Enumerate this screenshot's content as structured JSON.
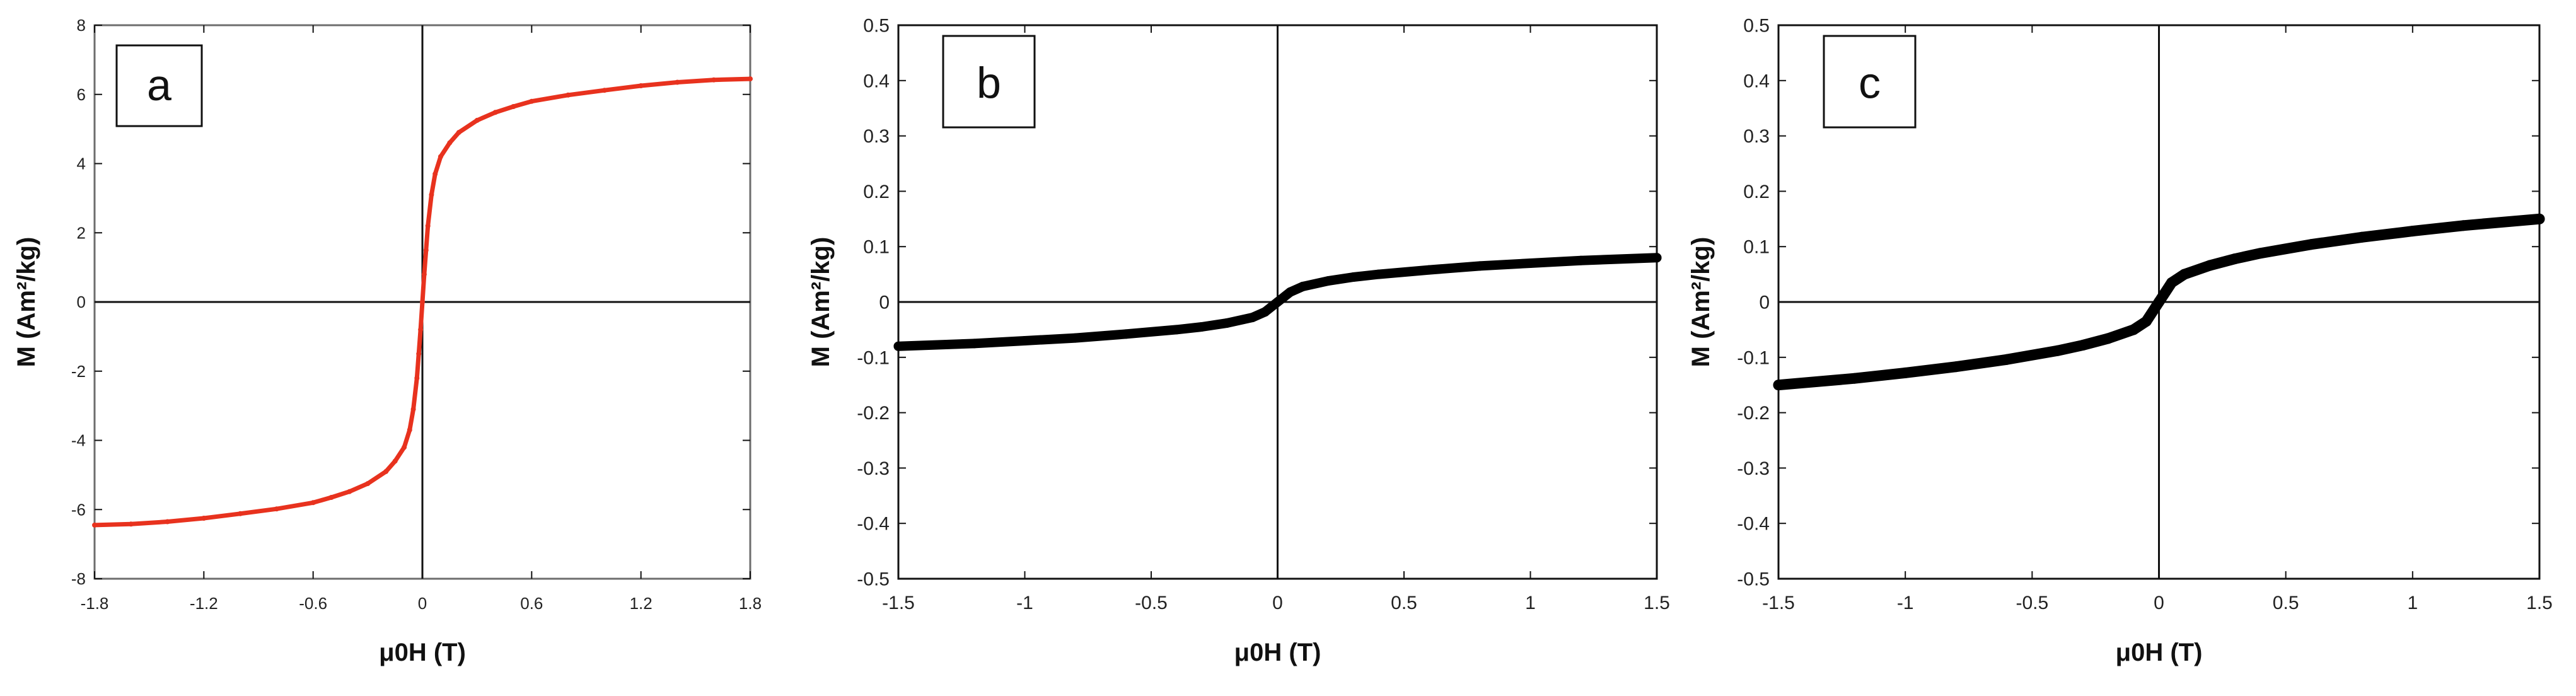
{
  "chart_data": [
    {
      "panel": "a",
      "type": "line",
      "xlabel": "μ0H (T)",
      "ylabel": "M (Am²/kg)",
      "xlim": [
        -1.8,
        1.8
      ],
      "ylim": [
        -8,
        8
      ],
      "xticks": [
        -1.8,
        -1.2,
        -0.6,
        0,
        0.6,
        1.2,
        1.8
      ],
      "xtick_labels": [
        "-1.8",
        "-1.2",
        "-0.6",
        "0",
        "0.6",
        "1.2",
        "1.8"
      ],
      "yticks": [
        -8,
        -6,
        -4,
        -2,
        0,
        2,
        4,
        6,
        8
      ],
      "ytick_labels": [
        "-8",
        "-6",
        "-4",
        "-2",
        "0",
        "2",
        "4",
        "6",
        "8"
      ],
      "grid": false,
      "color": "#e8321e",
      "series": [
        {
          "x": [
            -1.8,
            -1.6,
            -1.4,
            -1.2,
            -1.0,
            -0.8,
            -0.6,
            -0.5,
            -0.4,
            -0.3,
            -0.2,
            -0.15,
            -0.1,
            -0.07,
            -0.05,
            -0.03,
            -0.02,
            -0.01,
            0,
            0.01,
            0.02,
            0.03,
            0.05,
            0.07,
            0.1,
            0.15,
            0.2,
            0.3,
            0.4,
            0.5,
            0.6,
            0.8,
            1.0,
            1.2,
            1.4,
            1.6,
            1.8
          ],
          "y": [
            -6.45,
            -6.42,
            -6.35,
            -6.25,
            -6.12,
            -5.98,
            -5.8,
            -5.65,
            -5.48,
            -5.25,
            -4.9,
            -4.6,
            -4.2,
            -3.7,
            -3.1,
            -2.2,
            -1.5,
            -0.8,
            0,
            0.8,
            1.5,
            2.2,
            3.1,
            3.7,
            4.2,
            4.6,
            4.9,
            5.25,
            5.48,
            5.65,
            5.8,
            5.98,
            6.12,
            6.25,
            6.35,
            6.42,
            6.45
          ]
        }
      ]
    },
    {
      "panel": "b",
      "type": "line",
      "xlabel": "μ0H (T)",
      "ylabel": "M (Am²/kg)",
      "xlim": [
        -1.5,
        1.5
      ],
      "ylim": [
        -0.5,
        0.5
      ],
      "xticks": [
        -1.5,
        -1,
        -0.5,
        0,
        0.5,
        1,
        1.5
      ],
      "xtick_labels": [
        "-1.5",
        "-1",
        "-0.5",
        "0",
        "0.5",
        "1",
        "1.5"
      ],
      "yticks": [
        -0.5,
        -0.4,
        -0.3,
        -0.2,
        -0.1,
        0,
        0.1,
        0.2,
        0.3,
        0.4,
        0.5
      ],
      "ytick_labels": [
        "-0.5",
        "-0.4",
        "-0.3",
        "-0.2",
        "-0.1",
        "0",
        "0.1",
        "0.2",
        "0.3",
        "0.4",
        "0.5"
      ],
      "grid": false,
      "color": "#000000",
      "series": [
        {
          "x": [
            -1.5,
            -1.2,
            -1.0,
            -0.8,
            -0.6,
            -0.4,
            -0.3,
            -0.2,
            -0.1,
            -0.05,
            0,
            0.05,
            0.1,
            0.2,
            0.3,
            0.4,
            0.6,
            0.8,
            1.0,
            1.2,
            1.5
          ],
          "y": [
            -0.08,
            -0.075,
            -0.07,
            -0.065,
            -0.058,
            -0.05,
            -0.045,
            -0.038,
            -0.028,
            -0.018,
            0.0,
            0.018,
            0.028,
            0.038,
            0.045,
            0.05,
            0.058,
            0.065,
            0.07,
            0.075,
            0.08
          ]
        }
      ]
    },
    {
      "panel": "c",
      "type": "line",
      "xlabel": "μ0H (T)",
      "ylabel": "M (Am²/kg)",
      "xlim": [
        -1.5,
        1.5
      ],
      "ylim": [
        -0.5,
        0.5
      ],
      "xticks": [
        -1.5,
        -1,
        -0.5,
        0,
        0.5,
        1,
        1.5
      ],
      "xtick_labels": [
        "-1.5",
        "-1",
        "-0.5",
        "0",
        "0.5",
        "1",
        "1.5"
      ],
      "yticks": [
        -0.5,
        -0.4,
        -0.3,
        -0.2,
        -0.1,
        0,
        0.1,
        0.2,
        0.3,
        0.4,
        0.5
      ],
      "ytick_labels": [
        "-0.5",
        "-0.4",
        "-0.3",
        "-0.2",
        "-0.1",
        "0",
        "0.1",
        "0.2",
        "0.3",
        "0.4",
        "0.5"
      ],
      "grid": false,
      "color": "#000000",
      "series": [
        {
          "x": [
            -1.5,
            -1.2,
            -1.0,
            -0.8,
            -0.6,
            -0.4,
            -0.3,
            -0.2,
            -0.1,
            -0.05,
            0,
            0.05,
            0.1,
            0.2,
            0.3,
            0.4,
            0.6,
            0.8,
            1.0,
            1.2,
            1.5
          ],
          "y": [
            -0.15,
            -0.138,
            -0.128,
            -0.117,
            -0.104,
            -0.088,
            -0.078,
            -0.066,
            -0.05,
            -0.035,
            0.0,
            0.035,
            0.05,
            0.066,
            0.078,
            0.088,
            0.104,
            0.117,
            0.128,
            0.138,
            0.15
          ]
        }
      ]
    }
  ]
}
